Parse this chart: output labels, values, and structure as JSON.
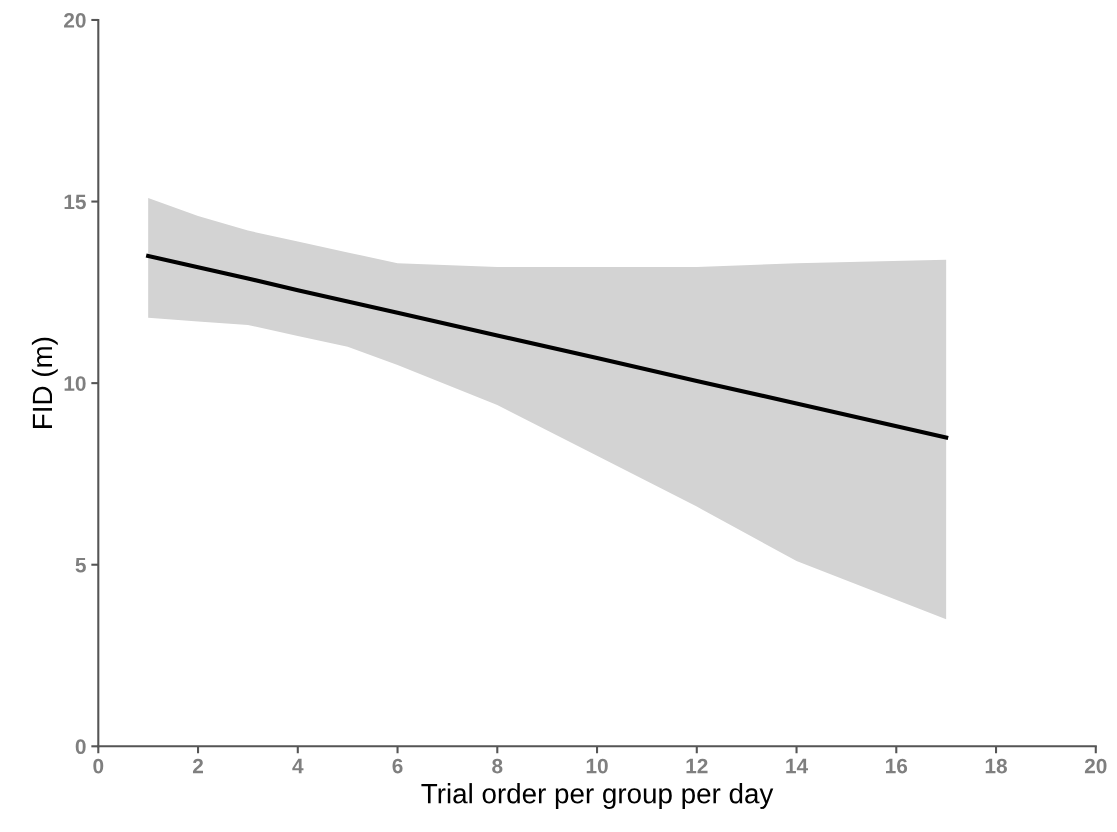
{
  "chart_data": {
    "type": "line",
    "xlabel": "Trial order per group per day",
    "ylabel": "FID (m)",
    "xlim": [
      0,
      20
    ],
    "xticks": [
      0,
      2,
      4,
      6,
      8,
      10,
      12,
      14,
      16,
      18,
      20
    ],
    "ylim": [
      0,
      20
    ],
    "yticks": [
      0,
      5,
      10,
      15,
      20
    ],
    "grid": false,
    "marker": "none",
    "line_style": "solid",
    "series": [
      {
        "color": "#000000",
        "x": [
          1,
          2,
          3,
          4,
          5,
          6,
          8,
          10,
          12,
          14,
          17
        ],
        "values": [
          13.5,
          13.19,
          12.88,
          12.56,
          12.25,
          11.94,
          11.31,
          10.69,
          10.06,
          9.44,
          8.5
        ],
        "lower": [
          11.8,
          11.7,
          11.6,
          11.3,
          11.0,
          10.5,
          9.4,
          8.0,
          6.6,
          5.1,
          3.5
        ],
        "upper": [
          15.1,
          14.6,
          14.2,
          13.9,
          13.6,
          13.3,
          13.2,
          13.2,
          13.2,
          13.3,
          13.4
        ]
      }
    ]
  }
}
